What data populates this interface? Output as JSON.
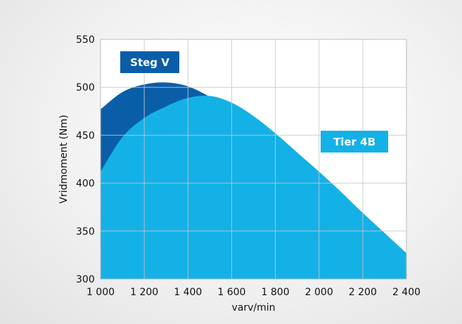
{
  "chart_data": {
    "type": "area",
    "xlabel": "varv/min",
    "ylabel": "Vridmoment (Nm)",
    "xlim": [
      1000,
      2400
    ],
    "ylim": [
      300,
      550
    ],
    "x_ticks": [
      1000,
      1200,
      1400,
      1600,
      1800,
      2000,
      2200,
      2400
    ],
    "x_tick_labels": [
      "1 000",
      "1 200",
      "1 400",
      "1 600",
      "1 800",
      "2 000",
      "2 200",
      "2 400"
    ],
    "y_ticks": [
      300,
      350,
      400,
      450,
      500,
      550
    ],
    "y_tick_labels": [
      "300",
      "350",
      "400",
      "450",
      "500",
      "550"
    ],
    "grid": true,
    "series": [
      {
        "name": "Steg V",
        "color": "#0a5ea8",
        "x": [
          1000,
          1100,
          1200,
          1300,
          1400,
          1500,
          1600,
          1700,
          1800,
          1900,
          2000,
          2100,
          2200,
          2300,
          2400
        ],
        "values": [
          477,
          495,
          503,
          505,
          501,
          490,
          476,
          460,
          443,
          424,
          404,
          384,
          363,
          343,
          324
        ]
      },
      {
        "name": "Tier 4B",
        "color": "#14b1e7",
        "x": [
          1000,
          1100,
          1200,
          1300,
          1400,
          1500,
          1600,
          1700,
          1800,
          1900,
          2000,
          2100,
          2200,
          2300,
          2400
        ],
        "values": [
          412,
          448,
          468,
          480,
          489,
          491,
          484,
          470,
          452,
          432,
          412,
          391,
          369,
          348,
          327
        ]
      }
    ]
  }
}
